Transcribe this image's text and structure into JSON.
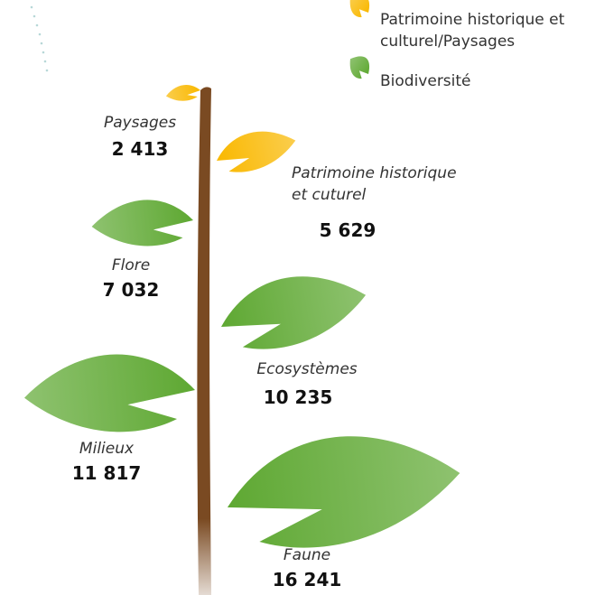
{
  "chart_data": {
    "type": "leaf",
    "series": [
      {
        "name": "Patrimoine historique et culturel/Paysages",
        "color": "#f9b800",
        "categories": [
          "Paysages",
          "Patrimoine historique et cuturel"
        ],
        "values": [
          2413,
          5629
        ],
        "value_labels": [
          "2 413",
          "5 629"
        ]
      },
      {
        "name": "Biodiversité",
        "color": "#5ea832",
        "categories": [
          "Flore",
          "Ecosystèmes",
          "Milieux",
          "Faune"
        ],
        "values": [
          7032,
          10235,
          11817,
          16241
        ],
        "value_labels": [
          "7 032",
          "10 235",
          "11 817",
          "16 241"
        ]
      }
    ]
  }
}
